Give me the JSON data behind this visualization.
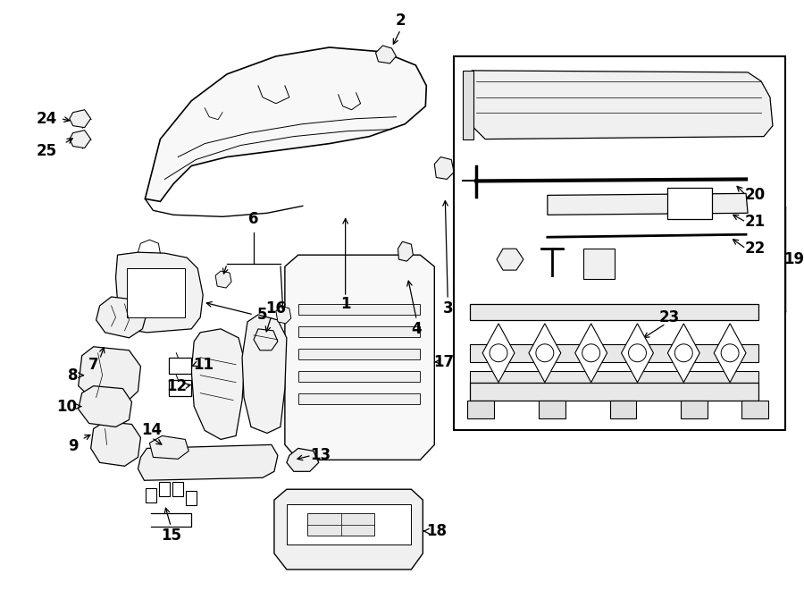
{
  "bg_color": "#ffffff",
  "line_color": "#000000",
  "fig_width": 9.0,
  "fig_height": 6.61,
  "dpi": 100
}
